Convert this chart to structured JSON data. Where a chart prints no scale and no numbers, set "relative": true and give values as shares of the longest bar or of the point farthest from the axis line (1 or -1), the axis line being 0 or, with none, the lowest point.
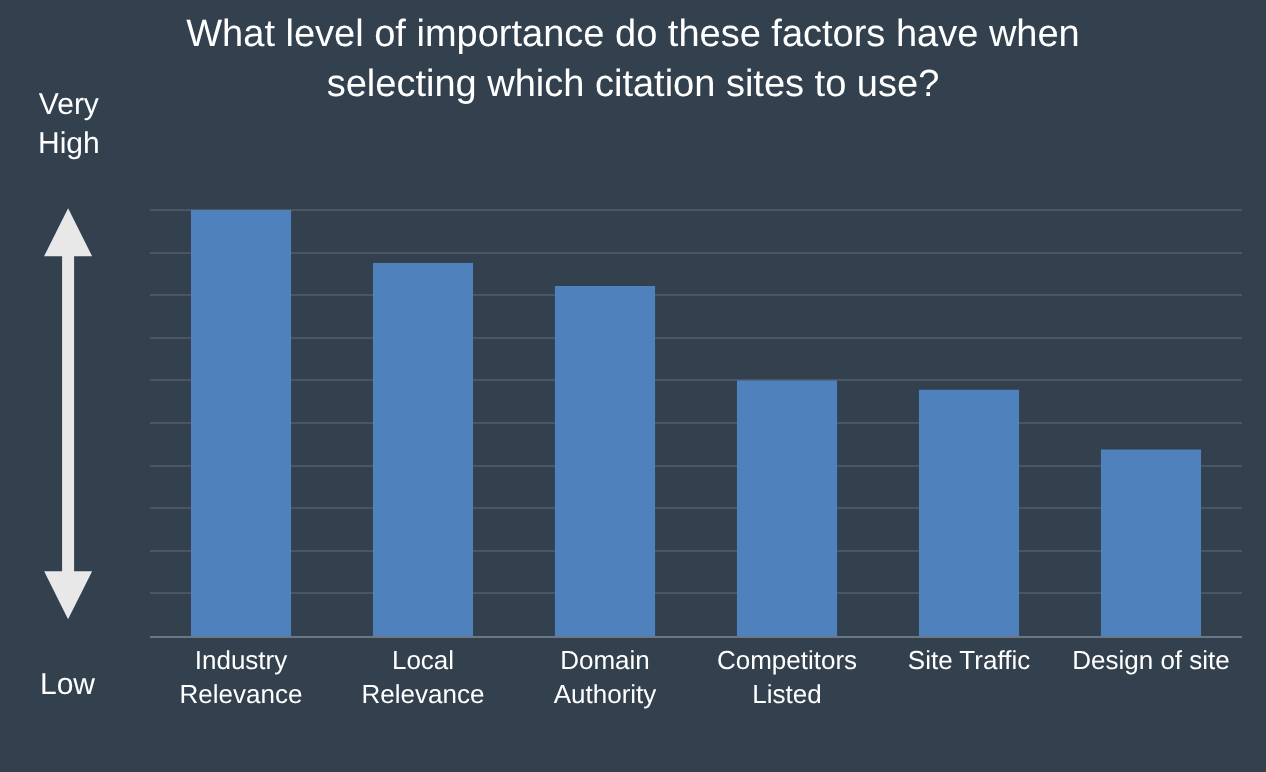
{
  "chart_data": {
    "type": "bar",
    "title": "What level of importance do these factors have when selecting which citation sites to use?",
    "categories": [
      "Industry Relevance",
      "Local Relevance",
      "Domain Authority",
      "Competitors Listed",
      "Site Traffic",
      "Design of site"
    ],
    "values": [
      1,
      0.876,
      0.822,
      0.6,
      0.578,
      0.438
    ],
    "color": "#4f81bd",
    "relative": true,
    "grid": "y",
    "annotations": [
      "Very High",
      "Low"
    ]
  }
}
